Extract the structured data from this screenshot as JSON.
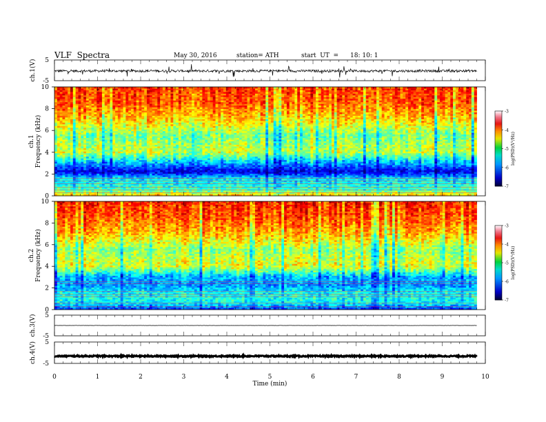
{
  "header": {
    "title": "VLF  Spectra",
    "date": "May 30, 2016",
    "station": "station= ATH",
    "start_label": "start  UT  =",
    "start_time": "18: 10: 1"
  },
  "chart_data": [
    {
      "type": "line",
      "panel": "ch1-waveform",
      "ylabel": "ch.1(V)",
      "ylim": [
        -5,
        5
      ],
      "yticks": [
        "5",
        "-5"
      ],
      "description_values": {
        "mean": -0.3,
        "spread": 0.6
      },
      "color": "#000000"
    },
    {
      "type": "heatmap",
      "panel": "ch1-spectrogram",
      "ylabel_line1": "ch.1",
      "ylabel_line2": "Frequency (kHz)",
      "ylim": [
        0,
        10
      ],
      "yticks": [
        "0",
        "2",
        "4",
        "6",
        "8",
        "10"
      ],
      "xlim": [
        0,
        10
      ],
      "data_extent_min": 9.8,
      "colorbar": {
        "label": "log(PSD)(V²/Hz)",
        "range": [
          -7,
          -3
        ],
        "ticks": [
          "-3",
          "-4",
          "-5",
          "-6",
          "-7"
        ]
      },
      "band_intensity_kHz": [
        {
          "f": 0.0,
          "v": -4.2
        },
        {
          "f": 0.5,
          "v": -5.2
        },
        {
          "f": 1.0,
          "v": -5.4
        },
        {
          "f": 1.6,
          "v": -5.6
        },
        {
          "f": 2.2,
          "v": -6.6
        },
        {
          "f": 3.0,
          "v": -5.8
        },
        {
          "f": 4.0,
          "v": -4.7
        },
        {
          "f": 4.6,
          "v": -4.8
        },
        {
          "f": 5.5,
          "v": -5.0
        },
        {
          "f": 7.0,
          "v": -4.3
        },
        {
          "f": 8.5,
          "v": -3.8
        },
        {
          "f": 10.0,
          "v": -3.7
        }
      ]
    },
    {
      "type": "heatmap",
      "panel": "ch2-spectrogram",
      "ylabel_line1": "ch.2",
      "ylabel_line2": "Frequency (kHz)",
      "ylim": [
        0,
        10
      ],
      "yticks": [
        "0",
        "2",
        "4",
        "6",
        "8",
        "10"
      ],
      "xlim": [
        0,
        10
      ],
      "data_extent_min": 9.8,
      "colorbar": {
        "label": "log(PSD)(V²/Hz)",
        "range": [
          -7,
          -3
        ],
        "ticks": [
          "-3",
          "-4",
          "-5",
          "-6",
          "-7"
        ]
      },
      "band_intensity_kHz": [
        {
          "f": 0.0,
          "v": -6.3
        },
        {
          "f": 0.5,
          "v": -5.6
        },
        {
          "f": 1.0,
          "v": -5.4
        },
        {
          "f": 1.6,
          "v": -5.5
        },
        {
          "f": 2.2,
          "v": -5.9
        },
        {
          "f": 3.0,
          "v": -5.8
        },
        {
          "f": 4.0,
          "v": -4.6
        },
        {
          "f": 4.6,
          "v": -4.7
        },
        {
          "f": 5.5,
          "v": -4.9
        },
        {
          "f": 7.0,
          "v": -4.2
        },
        {
          "f": 8.5,
          "v": -3.8
        },
        {
          "f": 10.0,
          "v": -3.6
        }
      ]
    },
    {
      "type": "line",
      "panel": "ch3-waveform",
      "ylabel": "ch.3(V)",
      "ylim": [
        -5,
        5
      ],
      "yticks": [
        "5",
        "-5"
      ],
      "description_values": {
        "mean": 0.0,
        "spread": 0.05
      },
      "color": "#000000"
    },
    {
      "type": "line",
      "panel": "ch4-waveform",
      "ylabel": "ch.4(V)",
      "ylim": [
        -5,
        5
      ],
      "yticks": [
        "5",
        "-5"
      ],
      "description_values": {
        "mean": -1.6,
        "spread": 0.3
      },
      "color": "#000000"
    }
  ],
  "xaxis": {
    "label": "Time  (min)",
    "range": [
      0,
      10
    ],
    "ticks": [
      "0",
      "1",
      "2",
      "3",
      "4",
      "5",
      "6",
      "7",
      "8",
      "9",
      "10"
    ]
  }
}
